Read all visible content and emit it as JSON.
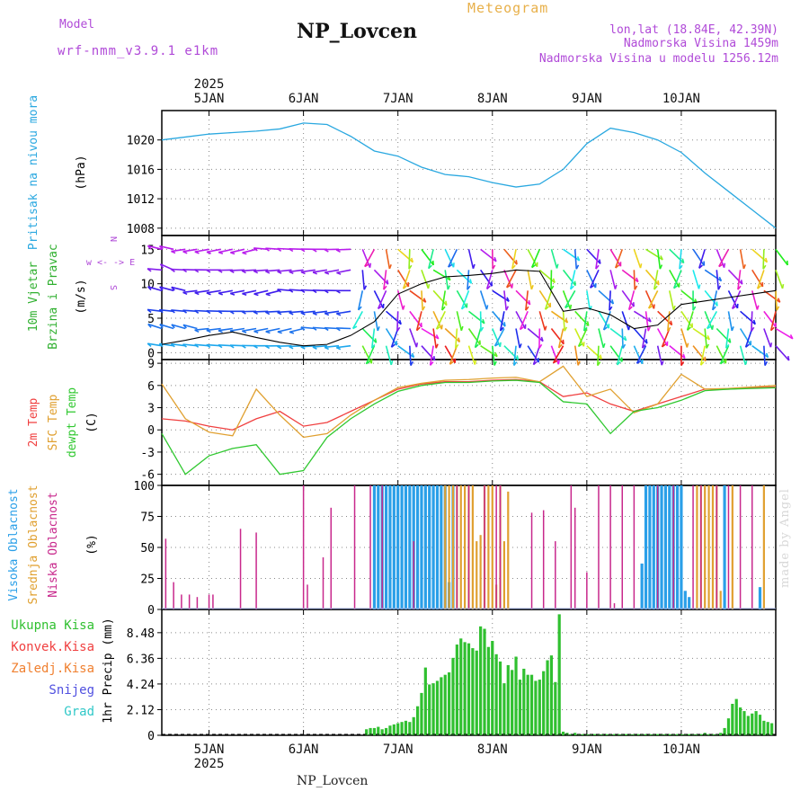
{
  "header": {
    "station": "NP_Lovcen",
    "model_label": "Model",
    "model_name": "wrf-nmm_v3.9.1 e1km",
    "title": "Meteogram",
    "location": "lon,lat (18.84E, 42.39N)",
    "altitude": "Nadmorska Visina 1459m",
    "model_altitude": "Nadmorska Visina u modelu 1256.12m"
  },
  "footer": {
    "station": "NP_Lovcen",
    "credit": "made by Angel"
  },
  "time_axis": {
    "year": "2025",
    "days": [
      "5JAN",
      "6JAN",
      "7JAN",
      "8JAN",
      "9JAN",
      "10JAN"
    ],
    "start_hour": 0,
    "end_hour": 144
  },
  "colors": {
    "pressure": "#2aa8e0",
    "temp2m": "#f04040",
    "sfc": "#e0a030",
    "dewpt": "#30c830",
    "cloud_high": "#2a9fe8",
    "cloud_mid": "#e0a030",
    "cloud_low": "#c8288c",
    "precip_total": "#30c030",
    "precip_conv": "#f04040",
    "precip_frz": "#f08030",
    "snow": "#5050e0",
    "hail": "#30c8c8",
    "wind_text": "#30b030",
    "wind_dir": "#b04ad8"
  },
  "chart_data": [
    {
      "type": "line",
      "title": "",
      "ylabel": "Pritisak na nivou mora (hPa)",
      "ylabel_lines": [
        "Pritisak na nivou mora",
        "(hPa)"
      ],
      "ylim": [
        1007,
        1024
      ],
      "yticks": [
        1008,
        1012,
        1016,
        1020
      ],
      "grid": true,
      "series": [
        {
          "name": "Pritisak na nivou mora",
          "x_hours": [
            -12,
            -6,
            0,
            6,
            12,
            18,
            24,
            30,
            36,
            42,
            48,
            54,
            60,
            66,
            72,
            78,
            84,
            90,
            96,
            102,
            108,
            114,
            120,
            126,
            132,
            138,
            144
          ],
          "values": [
            1020.0,
            1020.4,
            1020.8,
            1021.0,
            1021.2,
            1021.5,
            1022.3,
            1022.1,
            1020.5,
            1018.5,
            1017.8,
            1016.3,
            1015.3,
            1015.0,
            1014.2,
            1013.6,
            1014.0,
            1016.0,
            1019.5,
            1021.6,
            1021.0,
            1020.0,
            1018.3,
            1015.5,
            1013.0,
            1010.5,
            1008.0
          ]
        }
      ]
    },
    {
      "type": "line",
      "title": "",
      "ylabel": "10m Vjetar Brzina i Pravac (m/s)",
      "ylabel_lines": [
        "10m Vjetar",
        "Brzina i Pravac",
        "(m/s)"
      ],
      "direction_legend": [
        "N",
        "w <- -> E",
        "S"
      ],
      "ylim": [
        -1,
        17
      ],
      "yticks": [
        0,
        5,
        10,
        15
      ],
      "grid": true,
      "series": [
        {
          "name": "10m wind speed",
          "x_hours": [
            -12,
            -6,
            0,
            6,
            12,
            18,
            24,
            30,
            36,
            42,
            48,
            54,
            60,
            66,
            72,
            78,
            84,
            90,
            96,
            102,
            108,
            114,
            120,
            126,
            132,
            138,
            144
          ],
          "values": [
            1.2,
            1.8,
            2.5,
            3.0,
            2.2,
            1.5,
            1.0,
            1.2,
            2.5,
            4.5,
            8.5,
            10.0,
            11.0,
            11.2,
            11.5,
            12.0,
            11.8,
            6.0,
            6.5,
            5.5,
            3.5,
            4.0,
            7.0,
            7.5,
            8.0,
            8.5,
            9.0
          ]
        }
      ]
    },
    {
      "type": "line",
      "title": "",
      "ylabel": "2m Temp SFC Temp dewpt Temp (C)",
      "ylabel_lines": [
        "2m Temp",
        "SFC Temp",
        "dewpt Temp",
        "(C)"
      ],
      "ylim": [
        -7.5,
        9.5
      ],
      "yticks": [
        -6,
        -3,
        0,
        3,
        6,
        9
      ],
      "grid": true,
      "series": [
        {
          "name": "2m Temp",
          "x_hours": [
            -12,
            -6,
            0,
            6,
            12,
            18,
            24,
            30,
            36,
            42,
            48,
            54,
            60,
            66,
            72,
            78,
            84,
            90,
            96,
            102,
            108,
            114,
            120,
            126,
            132,
            138,
            144
          ],
          "values": [
            1.5,
            1.2,
            0.5,
            0.0,
            1.5,
            2.5,
            0.5,
            1.0,
            2.5,
            4.0,
            5.5,
            6.2,
            6.5,
            6.5,
            6.7,
            6.8,
            6.5,
            4.5,
            5.0,
            3.5,
            2.5,
            3.5,
            4.5,
            5.5,
            5.5,
            5.7,
            5.8
          ]
        },
        {
          "name": "SFC Temp",
          "x_hours": [
            -12,
            -6,
            0,
            6,
            12,
            18,
            24,
            30,
            36,
            42,
            48,
            54,
            60,
            66,
            72,
            78,
            84,
            90,
            96,
            102,
            108,
            114,
            120,
            126,
            132,
            138,
            144
          ],
          "values": [
            6.2,
            1.5,
            -0.3,
            -0.8,
            5.5,
            2.0,
            -1.0,
            -0.5,
            2.0,
            4.0,
            5.7,
            6.3,
            6.7,
            6.8,
            7.0,
            7.1,
            6.5,
            8.6,
            4.5,
            5.5,
            2.3,
            3.5,
            7.5,
            5.5,
            5.6,
            5.8,
            6.0
          ]
        },
        {
          "name": "dewpt Temp",
          "x_hours": [
            -12,
            -6,
            0,
            6,
            12,
            18,
            24,
            30,
            36,
            42,
            48,
            54,
            60,
            66,
            72,
            78,
            84,
            90,
            96,
            102,
            108,
            114,
            120,
            126,
            132,
            138,
            144
          ],
          "values": [
            -0.5,
            -6.0,
            -3.5,
            -2.5,
            -2.0,
            -6.0,
            -5.5,
            -1.0,
            1.5,
            3.5,
            5.2,
            6.0,
            6.4,
            6.4,
            6.6,
            6.7,
            6.4,
            3.8,
            3.5,
            -0.5,
            2.5,
            3.0,
            4.0,
            5.3,
            5.5,
            5.6,
            5.7
          ]
        }
      ]
    },
    {
      "type": "bar",
      "title": "",
      "ylabel": "Visoka Oblacnost Srednja Oblacnost Niska Oblacnost (%)",
      "ylabel_lines": [
        "Visoka Oblacnost",
        "Srednja Oblacnost",
        "Niska Oblacnost",
        "(%)"
      ],
      "ylim": [
        0,
        100
      ],
      "yticks": [
        0,
        25,
        50,
        75,
        100
      ],
      "grid": true,
      "series": [
        {
          "name": "Visoka Oblacnost",
          "x_hours": [
            42,
            43,
            44,
            45,
            46,
            47,
            48,
            49,
            50,
            51,
            52,
            53,
            54,
            55,
            56,
            57,
            58,
            59,
            60,
            61,
            62,
            110,
            111,
            112,
            113,
            114,
            115,
            116,
            117,
            118,
            119,
            120,
            121,
            122,
            131,
            140
          ],
          "values": [
            100,
            100,
            100,
            100,
            100,
            100,
            100,
            100,
            100,
            100,
            100,
            100,
            100,
            100,
            100,
            100,
            100,
            100,
            100,
            22,
            100,
            37,
            100,
            100,
            100,
            100,
            100,
            100,
            100,
            100,
            100,
            100,
            15,
            10,
            100,
            18
          ]
        },
        {
          "name": "Srednja Oblacnost",
          "x_hours": [
            60,
            61,
            62,
            63,
            64,
            65,
            66,
            67,
            68,
            69,
            70,
            71,
            72,
            73,
            74,
            75,
            76,
            124,
            125,
            126,
            127,
            128,
            129,
            130,
            133,
            141
          ],
          "values": [
            100,
            100,
            100,
            100,
            100,
            100,
            100,
            100,
            55,
            60,
            100,
            100,
            100,
            20,
            100,
            55,
            95,
            100,
            100,
            100,
            100,
            100,
            100,
            15,
            100,
            100
          ]
        },
        {
          "name": "Niska Oblacnost",
          "x_hours": [
            -11,
            -9,
            -7,
            -5,
            -3,
            0,
            1,
            8,
            12,
            24,
            25,
            29,
            31,
            37,
            41,
            44,
            52,
            63,
            66,
            70,
            73,
            74,
            82,
            85,
            88,
            92,
            93,
            96,
            99,
            102,
            103,
            105,
            108,
            114,
            118,
            123,
            125,
            129,
            132,
            135,
            138
          ],
          "values": [
            57,
            22,
            12,
            12,
            10,
            12,
            12,
            65,
            62,
            100,
            20,
            42,
            82,
            100,
            100,
            100,
            55,
            100,
            100,
            100,
            100,
            100,
            78,
            80,
            55,
            100,
            82,
            30,
            100,
            100,
            5,
            100,
            100,
            100,
            100,
            100,
            100,
            100,
            100,
            100,
            100
          ]
        }
      ]
    },
    {
      "type": "bar",
      "title": "",
      "ylabel": "1hr Precip (mm)",
      "ylabel_lines": [
        "1hr Precip (mm)"
      ],
      "legend": [
        "Ukupna Kisa",
        "Konvek.Kisa",
        "Zaledj.Kisa",
        "Snijeg",
        "Grad"
      ],
      "ylim": [
        0,
        10.4
      ],
      "yticks": [
        0,
        2.12,
        4.24,
        6.36,
        8.48
      ],
      "grid": true,
      "series": [
        {
          "name": "Ukupna Kisa",
          "x_hours": [
            40,
            41,
            42,
            43,
            44,
            45,
            46,
            47,
            48,
            49,
            50,
            51,
            52,
            53,
            54,
            55,
            56,
            57,
            58,
            59,
            60,
            61,
            62,
            63,
            64,
            65,
            66,
            67,
            68,
            69,
            70,
            71,
            72,
            73,
            74,
            75,
            76,
            77,
            78,
            79,
            80,
            81,
            82,
            83,
            84,
            85,
            86,
            87,
            88,
            89,
            90,
            91,
            92,
            93,
            94,
            95,
            96,
            97,
            98,
            99,
            100,
            101,
            102,
            103,
            104,
            105,
            106,
            107,
            108,
            109,
            110,
            111,
            112,
            113,
            114,
            115,
            116,
            117,
            118,
            119,
            120,
            121,
            122,
            123,
            124,
            125,
            126,
            127,
            128,
            129,
            130,
            131,
            132,
            133,
            134,
            135,
            136,
            137,
            138,
            139,
            140,
            141,
            142,
            143
          ],
          "values": [
            0.5,
            0.6,
            0.6,
            0.7,
            0.5,
            0.6,
            0.8,
            0.9,
            1.0,
            1.1,
            1.2,
            1.1,
            1.5,
            2.4,
            3.5,
            5.6,
            4.2,
            4.3,
            4.5,
            4.8,
            5.0,
            5.2,
            6.4,
            7.5,
            8.0,
            7.7,
            7.6,
            7.2,
            7.0,
            9.0,
            8.8,
            7.3,
            7.8,
            6.7,
            6.1,
            4.3,
            5.8,
            5.4,
            6.5,
            4.6,
            5.5,
            5.0,
            5.0,
            4.5,
            4.6,
            5.3,
            6.2,
            6.6,
            4.4,
            10.0,
            0.3,
            0.2,
            0.1,
            0.2,
            0.1,
            0.1,
            0.1,
            0.1,
            0.1,
            0.1,
            0.1,
            0.1,
            0.1,
            0.1,
            0.1,
            0.1,
            0.1,
            0.1,
            0.1,
            0.1,
            0.1,
            0.1,
            0.1,
            0.1,
            0.1,
            0.1,
            0.1,
            0.1,
            0.1,
            0.1,
            0.1,
            0.1,
            0.1,
            0.1,
            0.1,
            0.1,
            0.2,
            0.1,
            0.1,
            0.1,
            0.2,
            0.6,
            1.4,
            2.6,
            3.0,
            2.3,
            2.0,
            1.6,
            1.8,
            2.0,
            1.7,
            1.2,
            1.1,
            1.0
          ]
        }
      ]
    }
  ]
}
